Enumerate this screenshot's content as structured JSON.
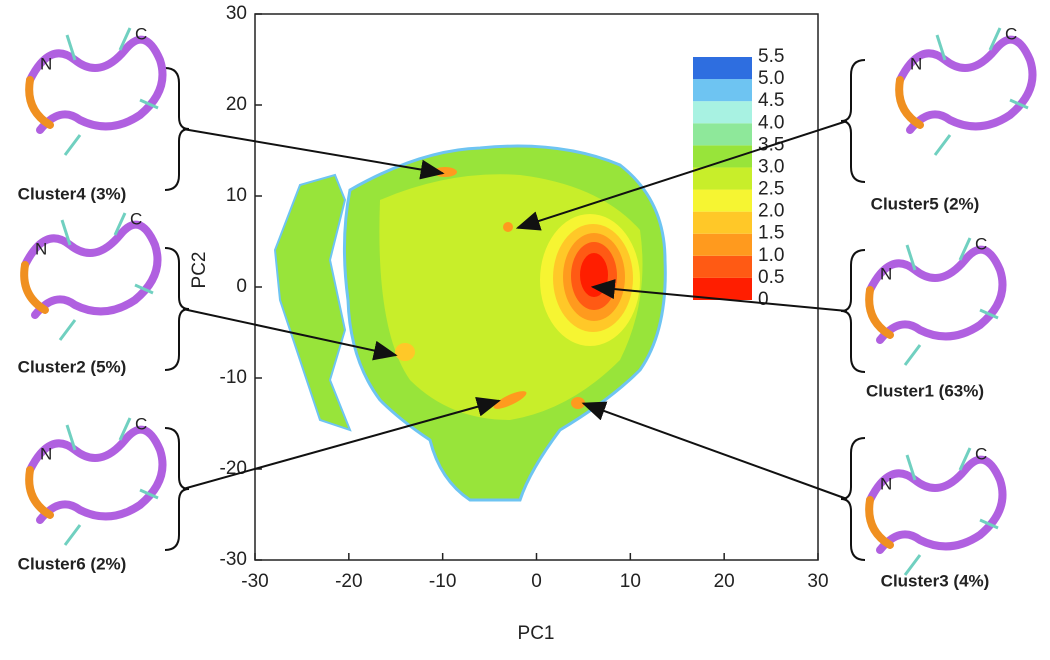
{
  "chart_data": {
    "type": "contour",
    "xlabel": "PC1",
    "ylabel": "PC2",
    "xlim": [
      -30,
      30
    ],
    "ylim": [
      -30,
      30
    ],
    "xticks": [
      -30,
      -20,
      -10,
      0,
      10,
      20,
      30
    ],
    "yticks": [
      -30,
      -20,
      -10,
      0,
      10,
      20,
      30
    ],
    "colorbar": {
      "levels": [
        0,
        {
          "value": 0.5,
          "label": "0.5"
        },
        {
          "value": 1,
          "label": "1.0"
        },
        {
          "value": 1.5,
          "label": "1.5"
        },
        {
          "value": 2,
          "label": "2.0"
        },
        {
          "value": 2.5,
          "label": "2.5"
        },
        {
          "value": 3,
          "label": "3.0"
        },
        {
          "value": 3.5,
          "label": "3.5"
        },
        {
          "value": 4,
          "label": "4.0"
        },
        {
          "value": 4.5,
          "label": "4.5"
        },
        {
          "value": 5,
          "label": "5.0"
        },
        {
          "value": 5.5,
          "label": "5.5"
        }
      ],
      "colors": [
        "#ff1e00",
        "#ff5a14",
        "#ff9a1e",
        "#ffc828",
        "#f6f532",
        "#c8ee2a",
        "#98e43a",
        "#8ee89a",
        "#a8f2e2",
        "#6ec4f2",
        "#2e6ee0"
      ]
    },
    "clusters": [
      {
        "label": "Cluster4 (3%)",
        "n": "N",
        "c": "C",
        "point": [
          -10,
          12.5
        ]
      },
      {
        "label": "Cluster2 (5%)",
        "n": "N",
        "c": "C",
        "point": [
          -15,
          -7.5
        ]
      },
      {
        "label": "Cluster6 (2%)",
        "n": "N",
        "c": "C",
        "point": [
          -4,
          -12.5
        ]
      },
      {
        "label": "Cluster5 (2%)",
        "n": "N",
        "c": "C",
        "point": [
          -2,
          6.5
        ]
      },
      {
        "label": "Cluster1 (63%)",
        "n": "N",
        "c": "C",
        "point": [
          6,
          0
        ]
      },
      {
        "label": "Cluster3 (4%)",
        "n": "N",
        "c": "C",
        "point": [
          5,
          -12.8
        ]
      }
    ]
  }
}
